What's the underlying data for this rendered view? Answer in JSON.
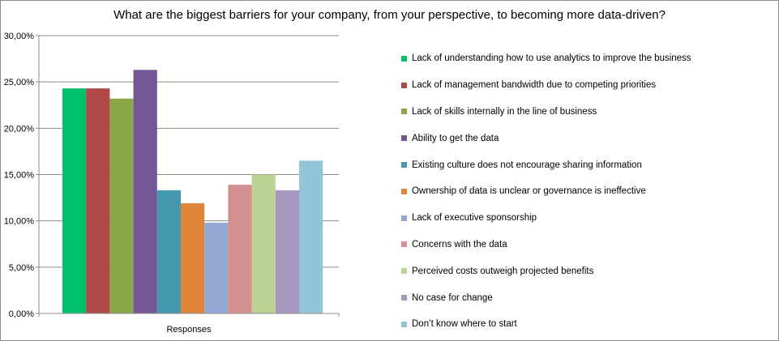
{
  "chart_data": {
    "type": "bar",
    "title": "What are the biggest barriers for your company, from your perspective, to becoming more data-driven?",
    "categories": [
      "Responses"
    ],
    "ylim": [
      0,
      30
    ],
    "yticks": [
      "0,00%",
      "5,00%",
      "10,00%",
      "15,00%",
      "20,00%",
      "25,00%",
      "30,00%"
    ],
    "grid": true,
    "legend_position": "right",
    "series": [
      {
        "name": "Lack of understanding how to use analytics to improve the business",
        "value": 24.3,
        "color": "#00c06b"
      },
      {
        "name": "Lack of management bandwidth due to competing priorities",
        "value": 24.3,
        "color": "#b04848"
      },
      {
        "name": "Lack of skills internally in the line of business",
        "value": 23.2,
        "color": "#8aa84a"
      },
      {
        "name": "Ability to get the data",
        "value": 26.3,
        "color": "#735693"
      },
      {
        "name": "Existing culture does not encourage sharing information",
        "value": 13.3,
        "color": "#4499b0"
      },
      {
        "name": "Ownership of data is unclear or governance is ineffective",
        "value": 11.9,
        "color": "#de853a"
      },
      {
        "name": "Lack of executive sponsorship",
        "value": 9.8,
        "color": "#94a8d4"
      },
      {
        "name": "Concerns with the data",
        "value": 13.9,
        "color": "#d49090"
      },
      {
        "name": "Perceived costs outweigh projected benefits",
        "value": 15.0,
        "color": "#bcd297"
      },
      {
        "name": "No case for change",
        "value": 13.3,
        "color": "#a898c0"
      },
      {
        "name": "Don’t know where to start",
        "value": 16.5,
        "color": "#93c5d8"
      }
    ]
  }
}
